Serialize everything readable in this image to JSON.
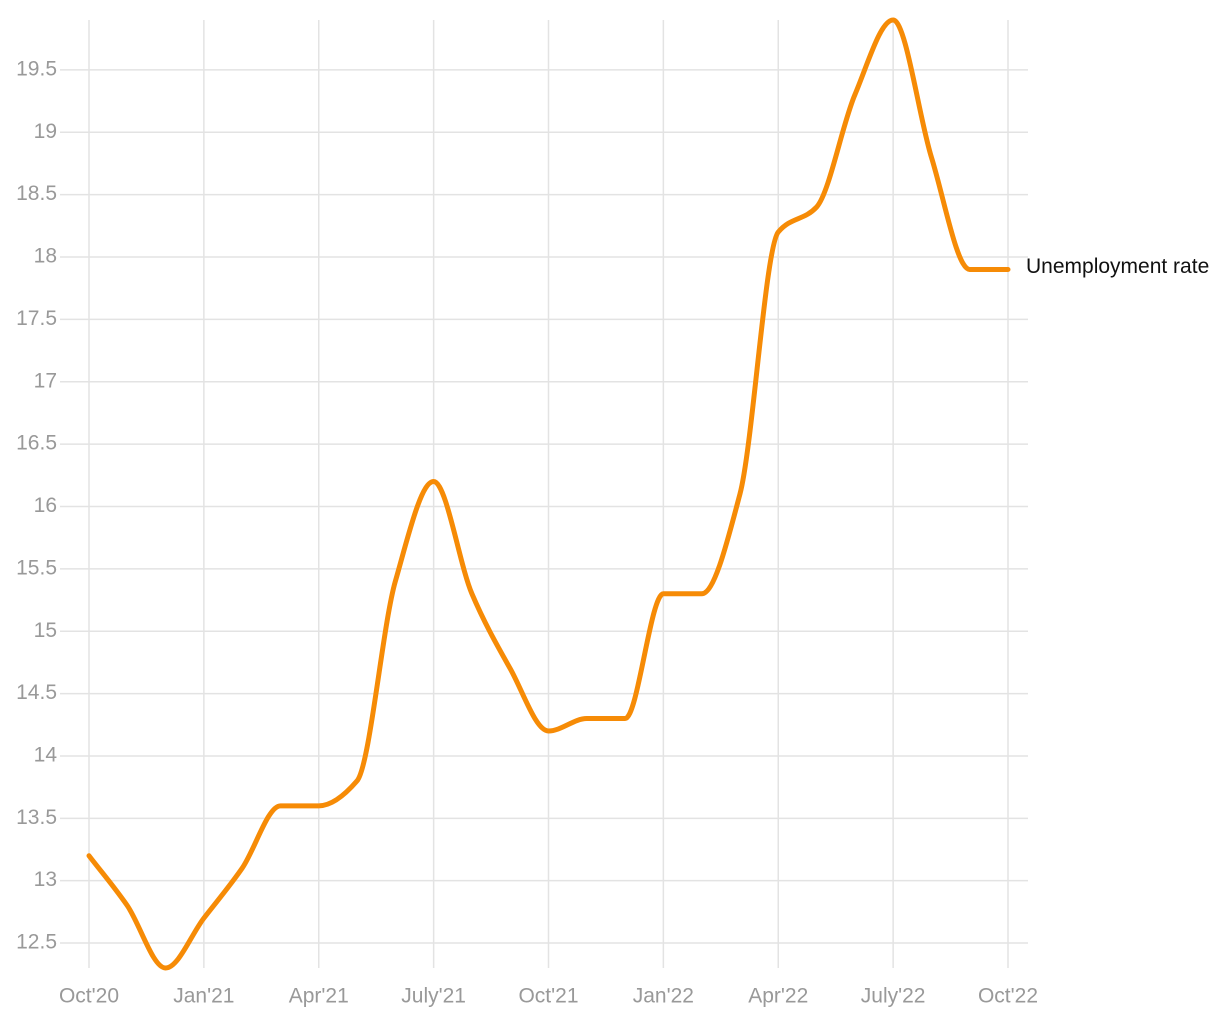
{
  "chart_data": {
    "type": "line",
    "categories": [
      "Oct'20",
      null,
      null,
      "Jan'21",
      null,
      null,
      "Apr'21",
      null,
      null,
      "July'21",
      null,
      null,
      "Oct'21",
      null,
      null,
      "Jan'22",
      null,
      null,
      "Apr'22",
      null,
      null,
      "July'22",
      null,
      null,
      "Oct'22"
    ],
    "series": [
      {
        "name": "Unemployment rate",
        "color": "#f68b06",
        "values": [
          13.2,
          12.8,
          12.3,
          12.7,
          13.1,
          13.6,
          13.6,
          13.8,
          15.4,
          16.2,
          15.3,
          14.7,
          14.2,
          14.3,
          14.3,
          15.3,
          15.3,
          16.1,
          18.2,
          18.4,
          19.3,
          19.9,
          18.8,
          17.9,
          17.9
        ]
      }
    ],
    "ylim": [
      12.3,
      19.9
    ],
    "yticks": [
      12.5,
      13,
      13.5,
      14,
      14.5,
      15,
      15.5,
      16,
      16.5,
      17,
      17.5,
      18,
      18.5,
      19,
      19.5
    ],
    "grid": true
  }
}
